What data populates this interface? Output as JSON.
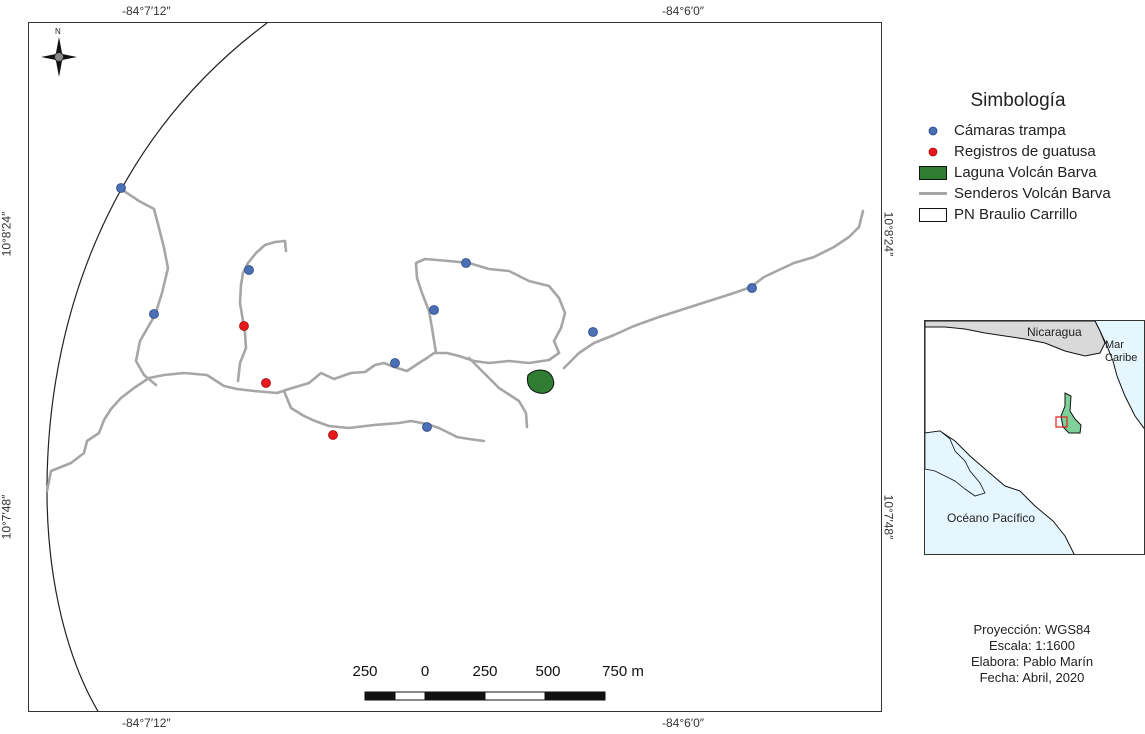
{
  "coordinates": {
    "top_left_lon": "-84°7′12″",
    "top_right_lon": "-84°6′0″",
    "bottom_left_lon": "-84°7′12″",
    "bottom_right_lon": "-84°6′0″",
    "left_upper_lat": "10°8′24″",
    "left_lower_lat": "10°7′48″",
    "right_upper_lat": "10°8′24″",
    "right_lower_lat": "10°7′48″"
  },
  "north_arrow": {
    "label": "N"
  },
  "legend": {
    "title": "Simbología",
    "items": [
      {
        "label": "Cámaras trampa",
        "symbol": "blue-dot-icon",
        "color": "#4a6fb5"
      },
      {
        "label": "Registros de guatusa",
        "symbol": "red-dot-icon",
        "color": "#e8191e"
      },
      {
        "label": "Laguna Volcán Barva",
        "symbol": "green-fill-icon",
        "color": "#2e7d32"
      },
      {
        "label": "Senderos Volcán Barva",
        "symbol": "gray-line-icon",
        "color": "#a6a6a6"
      },
      {
        "label": "PN Braulio Carrillo",
        "symbol": "white-box-icon",
        "color": "#ffffff"
      }
    ]
  },
  "inset": {
    "labels": {
      "nicaragua": "Nicaragua",
      "caribbean_1": "Mar",
      "caribbean_2": "Caribe",
      "pacific": "Océano Pacífico"
    },
    "colors": {
      "sea": "#e6f6ff",
      "land": "#ffffff",
      "nicaragua": "#d9d9d9",
      "park": "#7fd19a",
      "highlight": "#e8191e"
    }
  },
  "scale_bar": {
    "labels": [
      "250",
      "0",
      "250",
      "500",
      "750 m"
    ]
  },
  "info": {
    "projection": "Proyección: WGS84",
    "scale": "Escala: 1:1600",
    "author": "Elabora: Pablo Marín",
    "date": "Fecha: Abril, 2020"
  }
}
